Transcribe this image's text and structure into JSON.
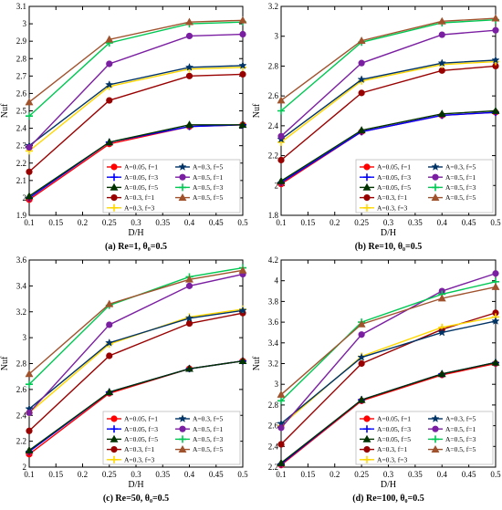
{
  "colors": {
    "A=0.05, f=1": "#ff0000",
    "A=0.05, f=3": "#0000ff",
    "A=0.05, f=5": "#003300",
    "A=0.3, f=1": "#990000",
    "A=0.3, f=3": "#ffd700",
    "A=0.3, f=5": "#003366",
    "A=0.5, f=1": "#7b1fa2",
    "A=0.5, f=3": "#00c853",
    "A=0.5, f=5": "#a0522d"
  },
  "legend_labels": [
    "A=0.05, f=1",
    "A=0.3, f=5",
    "A=0.05, f=3",
    "A=0.5, f=1",
    "A=0.05, f=5",
    "A=0.5, f=3",
    "A=0.3, f=1",
    "A=0.5, f=5",
    "A=0.3, f=3"
  ],
  "chart_data": [
    {
      "type": "line",
      "caption": "(a) Re=1, θ₀=0.5",
      "xlabel": "D/H",
      "ylabel": "Nuf",
      "x": [
        0.1,
        0.25,
        0.4,
        0.5
      ],
      "xticks": [
        "0.1",
        "0.15",
        "0.2",
        "0.25",
        "0.3",
        "0.35",
        "0.4",
        "0.45",
        "0.5"
      ],
      "ylim": [
        1.9,
        3.1
      ],
      "yticks": [
        "1.9",
        "2",
        "2.1",
        "2.2",
        "2.3",
        "2.4",
        "2.5",
        "2.6",
        "2.7",
        "2.8",
        "2.9",
        "3",
        "3.1"
      ],
      "series": [
        {
          "name": "A=0.05, f=1",
          "marker": "circle",
          "values": [
            1.99,
            2.31,
            2.41,
            2.42
          ]
        },
        {
          "name": "A=0.05, f=3",
          "marker": "plus",
          "values": [
            2.0,
            2.32,
            2.41,
            2.42
          ]
        },
        {
          "name": "A=0.05, f=5",
          "marker": "triangle",
          "values": [
            2.01,
            2.32,
            2.42,
            2.42
          ]
        },
        {
          "name": "A=0.3, f=1",
          "marker": "circle",
          "values": [
            2.15,
            2.56,
            2.7,
            2.71
          ]
        },
        {
          "name": "A=0.3, f=3",
          "marker": "plus",
          "values": [
            2.27,
            2.64,
            2.74,
            2.75
          ]
        },
        {
          "name": "A=0.3, f=5",
          "marker": "star",
          "values": [
            2.3,
            2.65,
            2.75,
            2.76
          ]
        },
        {
          "name": "A=0.5, f=1",
          "marker": "circle",
          "values": [
            2.29,
            2.77,
            2.93,
            2.94
          ]
        },
        {
          "name": "A=0.5, f=3",
          "marker": "plus",
          "values": [
            2.47,
            2.89,
            3.0,
            3.01
          ]
        },
        {
          "name": "A=0.5, f=5",
          "marker": "triangle",
          "values": [
            2.55,
            2.91,
            3.01,
            3.02
          ]
        }
      ]
    },
    {
      "type": "line",
      "caption": "(b) Re=10, θ₀=0.5",
      "xlabel": "D/H",
      "ylabel": "Nuf",
      "x": [
        0.1,
        0.25,
        0.4,
        0.5
      ],
      "xticks": [
        "0.1",
        "0.15",
        "0.2",
        "0.25",
        "0.3",
        "0.35",
        "0.4",
        "0.45",
        "0.5"
      ],
      "ylim": [
        1.8,
        3.2
      ],
      "yticks": [
        "1.8",
        "2",
        "2.2",
        "2.4",
        "2.6",
        "2.8",
        "3",
        "3.2"
      ],
      "series": [
        {
          "name": "A=0.05, f=1",
          "marker": "circle",
          "values": [
            2.01,
            2.36,
            2.47,
            2.49
          ]
        },
        {
          "name": "A=0.05, f=3",
          "marker": "plus",
          "values": [
            2.02,
            2.36,
            2.47,
            2.49
          ]
        },
        {
          "name": "A=0.05, f=5",
          "marker": "triangle",
          "values": [
            2.03,
            2.37,
            2.48,
            2.5
          ]
        },
        {
          "name": "A=0.3, f=1",
          "marker": "circle",
          "values": [
            2.17,
            2.62,
            2.77,
            2.8
          ]
        },
        {
          "name": "A=0.3, f=3",
          "marker": "plus",
          "values": [
            2.29,
            2.7,
            2.81,
            2.83
          ]
        },
        {
          "name": "A=0.3, f=5",
          "marker": "star",
          "values": [
            2.31,
            2.71,
            2.82,
            2.84
          ]
        },
        {
          "name": "A=0.5, f=1",
          "marker": "circle",
          "values": [
            2.33,
            2.82,
            3.01,
            3.04
          ]
        },
        {
          "name": "A=0.5, f=3",
          "marker": "plus",
          "values": [
            2.5,
            2.96,
            3.09,
            3.11
          ]
        },
        {
          "name": "A=0.5, f=5",
          "marker": "triangle",
          "values": [
            2.57,
            2.97,
            3.1,
            3.12
          ]
        }
      ]
    },
    {
      "type": "line",
      "caption": "(c) Re=50, θ₀=0.5",
      "xlabel": "D/H",
      "ylabel": "Nuf",
      "x": [
        0.1,
        0.25,
        0.4,
        0.5
      ],
      "xticks": [
        "0.1",
        "0.15",
        "0.2",
        "0.25",
        "0.3",
        "0.35",
        "0.4",
        "0.45",
        "0.5"
      ],
      "ylim": [
        2.0,
        3.6
      ],
      "yticks": [
        "2",
        "2.2",
        "2.4",
        "2.6",
        "2.8",
        "3",
        "3.2",
        "3.4",
        "3.6"
      ],
      "series": [
        {
          "name": "A=0.05, f=1",
          "marker": "circle",
          "values": [
            2.1,
            2.57,
            2.76,
            2.82
          ]
        },
        {
          "name": "A=0.05, f=3",
          "marker": "plus",
          "values": [
            2.12,
            2.58,
            2.76,
            2.82
          ]
        },
        {
          "name": "A=0.05, f=5",
          "marker": "triangle",
          "values": [
            2.13,
            2.58,
            2.76,
            2.82
          ]
        },
        {
          "name": "A=0.3, f=1",
          "marker": "circle",
          "values": [
            2.28,
            2.86,
            3.11,
            3.19
          ]
        },
        {
          "name": "A=0.3, f=3",
          "marker": "plus",
          "values": [
            2.42,
            2.95,
            3.16,
            3.22
          ]
        },
        {
          "name": "A=0.3, f=5",
          "marker": "star",
          "values": [
            2.45,
            2.96,
            3.15,
            3.21
          ]
        },
        {
          "name": "A=0.5, f=1",
          "marker": "circle",
          "values": [
            2.42,
            3.1,
            3.4,
            3.49
          ]
        },
        {
          "name": "A=0.5, f=3",
          "marker": "plus",
          "values": [
            2.64,
            3.25,
            3.47,
            3.54
          ]
        },
        {
          "name": "A=0.5, f=5",
          "marker": "triangle",
          "values": [
            2.72,
            3.26,
            3.45,
            3.52
          ]
        }
      ]
    },
    {
      "type": "line",
      "caption": "(d) Re=100, θ₀=0.5",
      "xlabel": "D/H",
      "ylabel": "Nuf",
      "x": [
        0.1,
        0.25,
        0.4,
        0.5
      ],
      "xticks": [
        "0.1",
        "0.15",
        "0.2",
        "0.25",
        "0.3",
        "0.35",
        "0.4",
        "0.45",
        "0.5"
      ],
      "ylim": [
        2.2,
        4.2
      ],
      "yticks": [
        "2.2",
        "2.4",
        "2.6",
        "2.8",
        "3",
        "3.2",
        "3.4",
        "3.6",
        "3.8",
        "4",
        "4.2"
      ],
      "series": [
        {
          "name": "A=0.05, f=1",
          "marker": "circle",
          "values": [
            2.22,
            2.84,
            3.09,
            3.2
          ]
        },
        {
          "name": "A=0.05, f=3",
          "marker": "plus",
          "values": [
            2.23,
            2.85,
            3.1,
            3.21
          ]
        },
        {
          "name": "A=0.05, f=5",
          "marker": "triangle",
          "values": [
            2.24,
            2.85,
            3.1,
            3.21
          ]
        },
        {
          "name": "A=0.3, f=1",
          "marker": "circle",
          "values": [
            2.42,
            3.2,
            3.53,
            3.69
          ]
        },
        {
          "name": "A=0.3, f=3",
          "marker": "plus",
          "values": [
            2.6,
            3.27,
            3.55,
            3.65
          ]
        },
        {
          "name": "A=0.3, f=5",
          "marker": "star",
          "values": [
            2.62,
            3.26,
            3.5,
            3.61
          ]
        },
        {
          "name": "A=0.5, f=1",
          "marker": "circle",
          "values": [
            2.58,
            3.48,
            3.9,
            4.07
          ]
        },
        {
          "name": "A=0.5, f=3",
          "marker": "plus",
          "values": [
            2.84,
            3.6,
            3.87,
            3.99
          ]
        },
        {
          "name": "A=0.5, f=5",
          "marker": "triangle",
          "values": [
            2.9,
            3.58,
            3.83,
            3.94
          ]
        }
      ]
    }
  ]
}
